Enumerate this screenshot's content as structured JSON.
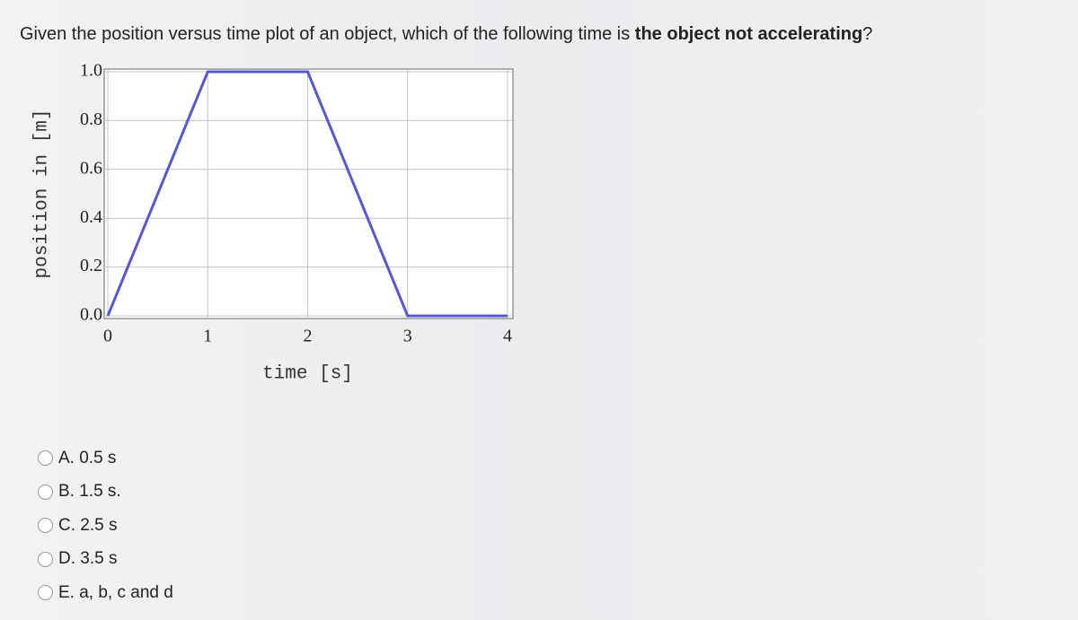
{
  "question": {
    "parts": [
      "Given the position versus time plot of an object, which of the following time is ",
      "the object not accelerating",
      "?"
    ]
  },
  "chart_data": {
    "type": "line",
    "x_label": "time [s]",
    "y_label": "position in [m]",
    "x": [
      0,
      1,
      2,
      3,
      4
    ],
    "values": [
      0,
      1,
      1,
      0,
      0
    ],
    "color": "#5658d2",
    "xlim": [
      0,
      4
    ],
    "xticks": [
      0,
      1,
      2,
      3,
      4
    ],
    "ylim": [
      0,
      1
    ],
    "yticks": [
      {
        "value": 0,
        "label": "0.0"
      },
      0.2,
      0.4,
      0.6,
      0.8,
      {
        "value": 1,
        "label": "1.0"
      }
    ],
    "grid": true
  },
  "options": [
    "A. 0.5 s",
    "B. 1.5 s.",
    "C. 2.5 s",
    "D. 3.5 s",
    "E. a, b, c and d"
  ]
}
